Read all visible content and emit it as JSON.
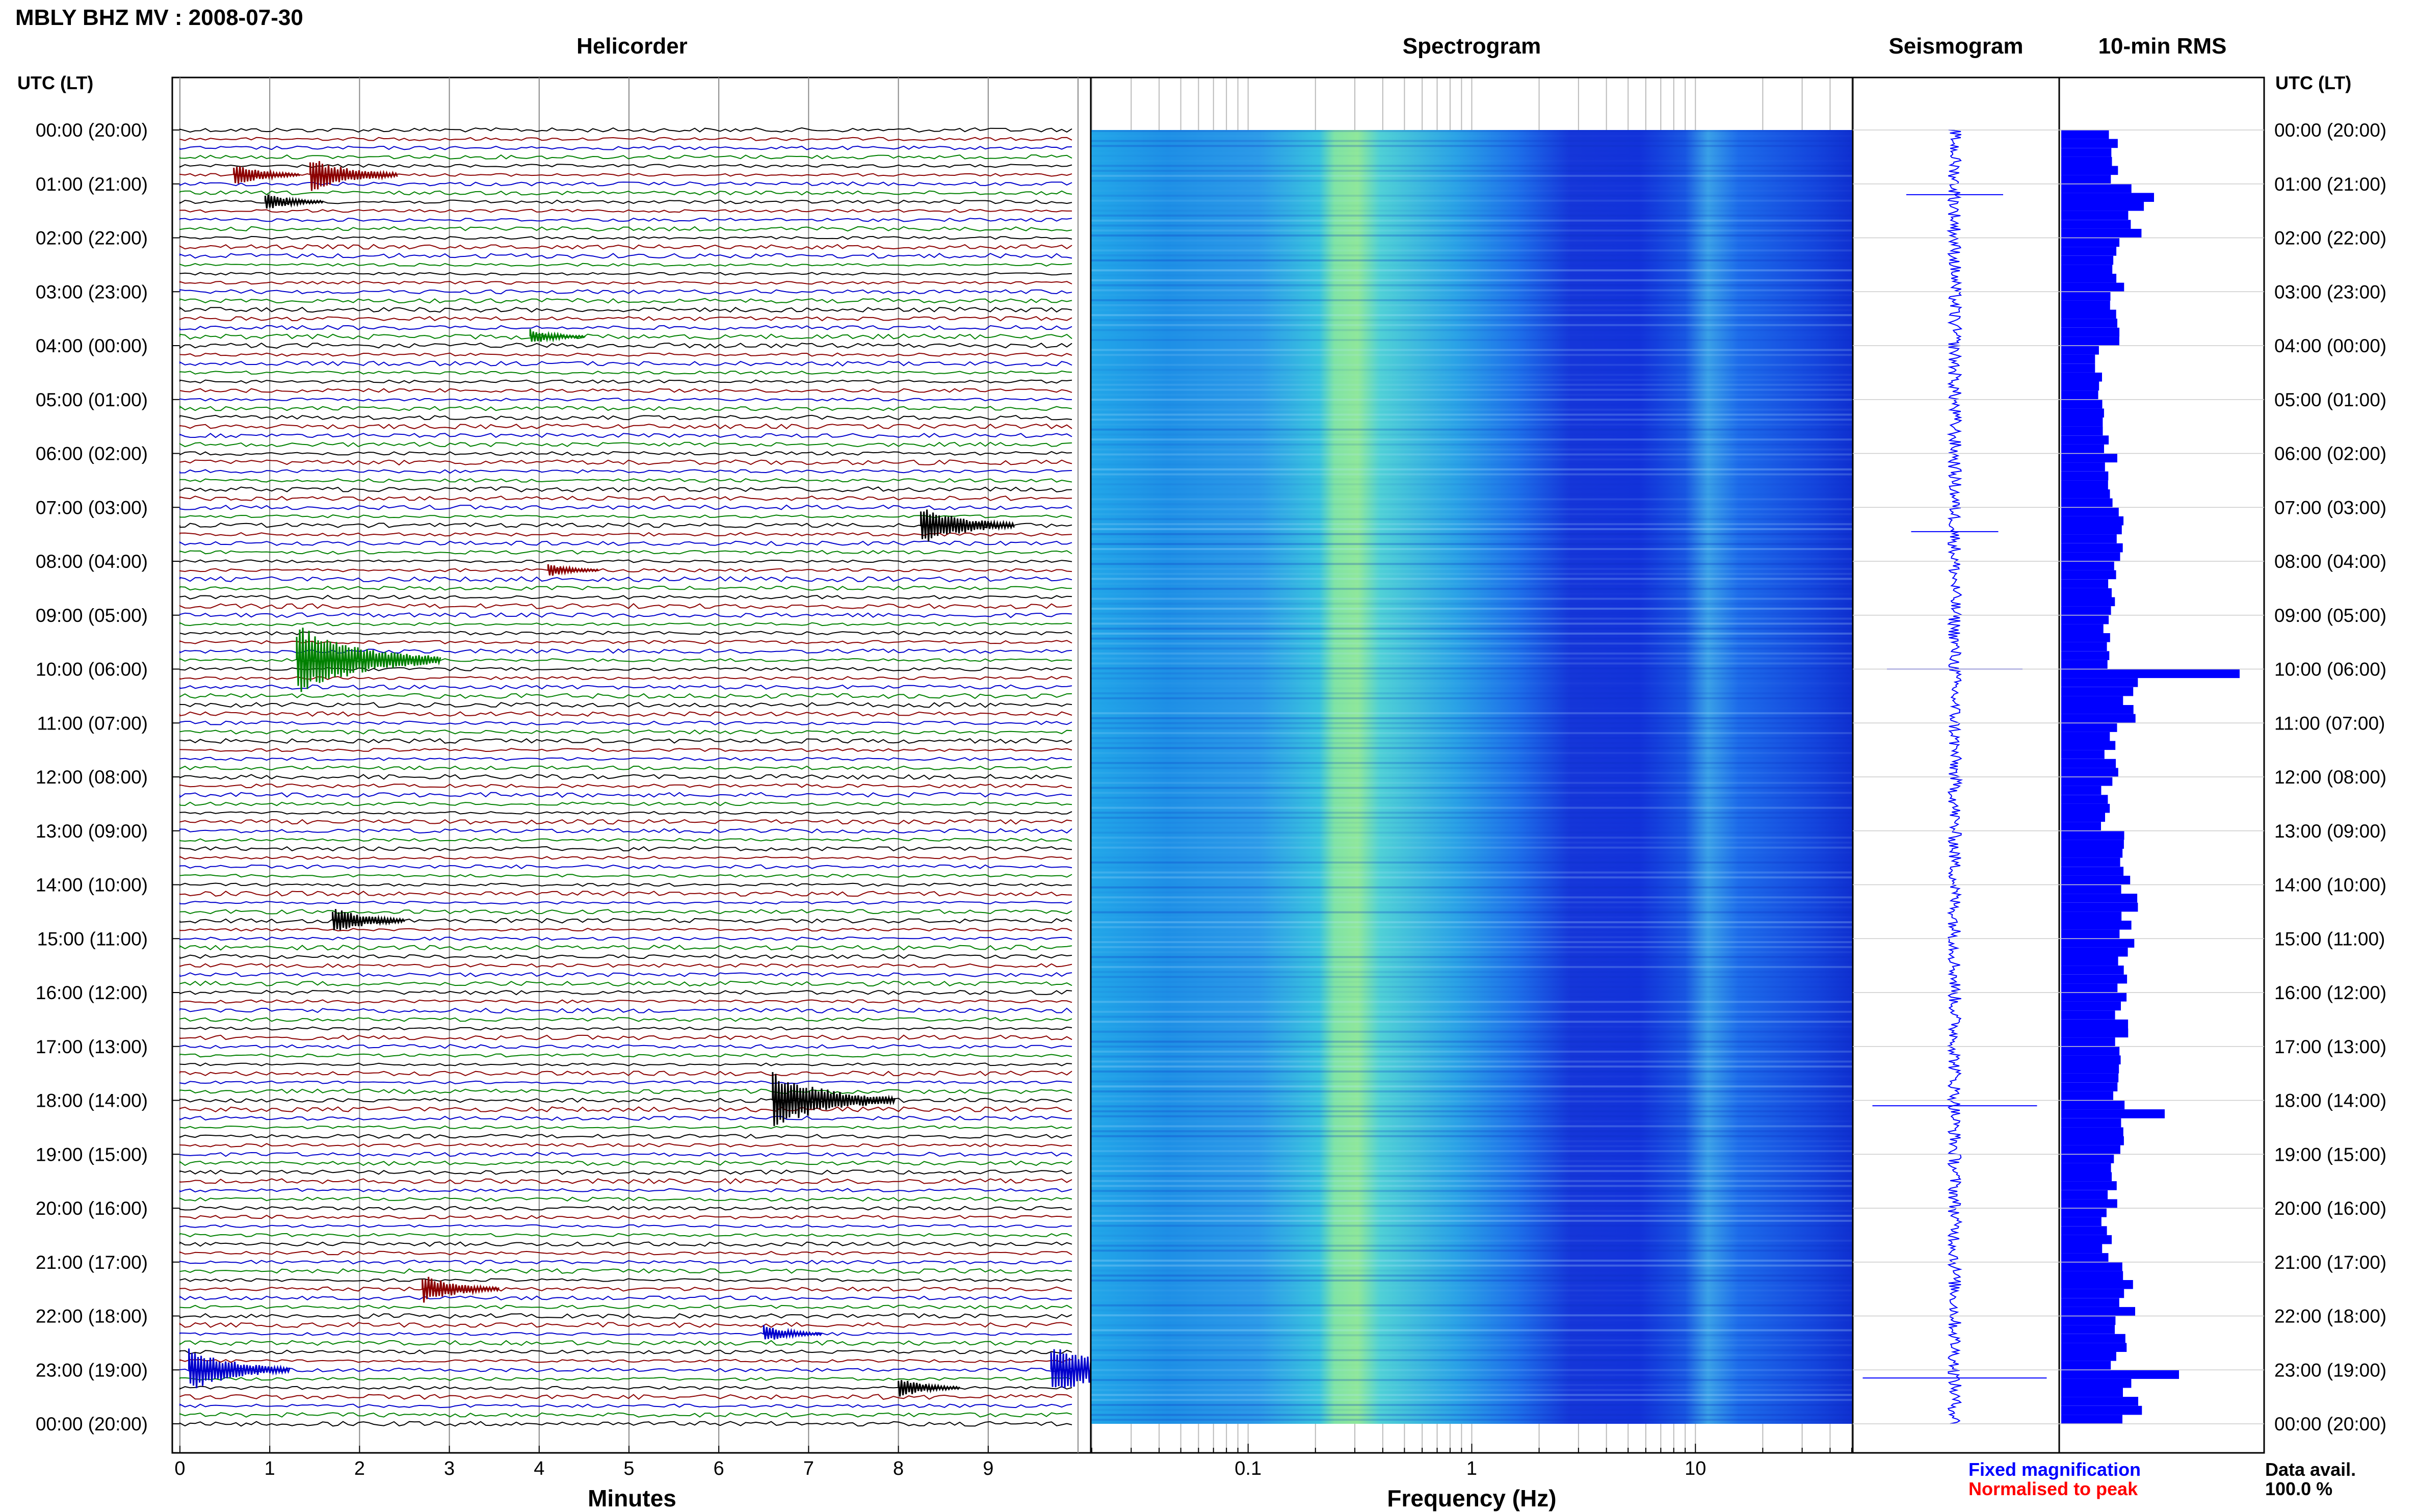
{
  "title": "MBLY BHZ MV : 2008-07-30",
  "panels": {
    "helicorder": "Helicorder",
    "spectrogram": "Spectrogram",
    "seismogram": "Seismogram",
    "rms": "10-min RMS"
  },
  "axis_head_left": "UTC (LT)",
  "axis_head_right": "UTC (LT)",
  "time_labels": [
    "00:00 (20:00)",
    "01:00 (21:00)",
    "02:00 (22:00)",
    "03:00 (23:00)",
    "04:00 (00:00)",
    "05:00 (01:00)",
    "06:00 (02:00)",
    "07:00 (03:00)",
    "08:00 (04:00)",
    "09:00 (05:00)",
    "10:00 (06:00)",
    "11:00 (07:00)",
    "12:00 (08:00)",
    "13:00 (09:00)",
    "14:00 (10:00)",
    "15:00 (11:00)",
    "16:00 (12:00)",
    "17:00 (13:00)",
    "18:00 (14:00)",
    "19:00 (15:00)",
    "20:00 (16:00)",
    "21:00 (17:00)",
    "22:00 (18:00)",
    "23:00 (19:00)",
    "00:00 (20:00)"
  ],
  "minutes_ticks": [
    "0",
    "1",
    "2",
    "3",
    "4",
    "5",
    "6",
    "7",
    "8",
    "9"
  ],
  "minutes_label": "Minutes",
  "freq_ticks": [
    "0.1",
    "1",
    "10"
  ],
  "freq_label": "Frequency (Hz)",
  "legend": {
    "fixed": "Fixed magnification",
    "fixed_color": "#0000ff",
    "normalised": "Normalised to peak",
    "normalised_color": "#ff0000"
  },
  "data_avail": {
    "label": "Data avail.",
    "value": "100.0 %"
  },
  "colors": {
    "trace_cycle": [
      "#000000",
      "#8b0000",
      "#0000cc",
      "#008000"
    ],
    "rms_bar": "#0000ff",
    "seismogram": "#0000ff"
  },
  "chart_data": [
    {
      "type": "line",
      "title": "Helicorder",
      "xlabel": "Minutes",
      "ylabel": "UTC (LT)",
      "xlim": [
        0,
        10
      ],
      "rows_per_hour": 6,
      "events": [
        {
          "hour": 0.75,
          "minute": 0.6,
          "amp": 1.0
        },
        {
          "hour": 0.85,
          "minute": 1.45,
          "amp": 1.6
        },
        {
          "hour": 1.35,
          "minute": 0.95,
          "amp": 0.8
        },
        {
          "hour": 3.75,
          "minute": 3.9,
          "amp": 0.7
        },
        {
          "hour": 7.3,
          "minute": 8.25,
          "amp": 1.8
        },
        {
          "hour": 8.15,
          "minute": 4.1,
          "amp": 0.6
        },
        {
          "hour": 9.9,
          "minute": 1.3,
          "amp": 3.2
        },
        {
          "hour": 14.6,
          "minute": 1.7,
          "amp": 1.2
        },
        {
          "hour": 17.95,
          "minute": 6.6,
          "amp": 2.6
        },
        {
          "hour": 21.45,
          "minute": 2.7,
          "amp": 1.3
        },
        {
          "hour": 22.4,
          "minute": 6.5,
          "amp": 0.8
        },
        {
          "hour": 23.0,
          "minute": 0.1,
          "amp": 2.0
        },
        {
          "hour": 22.95,
          "minute": 9.7,
          "amp": 2.4
        },
        {
          "hour": 23.25,
          "minute": 8.0,
          "amp": 0.9
        }
      ]
    },
    {
      "type": "heatmap",
      "title": "Spectrogram",
      "xlabel": "Frequency (Hz)",
      "ylabel": "UTC (LT)",
      "xscale": "log",
      "xlim": [
        0.02,
        50
      ],
      "ylim": [
        0,
        24
      ],
      "peak_band_hz": [
        0.2,
        0.35
      ]
    },
    {
      "type": "line",
      "title": "Seismogram",
      "ylim": [
        0,
        24
      ],
      "spikes": [
        {
          "hour": 1.2,
          "amp": 0.5
        },
        {
          "hour": 7.45,
          "amp": 0.45
        },
        {
          "hour": 10.0,
          "amp": 0.7
        },
        {
          "hour": 18.1,
          "amp": 0.85
        },
        {
          "hour": 23.15,
          "amp": 0.95
        }
      ]
    },
    {
      "type": "bar",
      "title": "10-min RMS",
      "ylim": [
        0,
        24
      ],
      "bins_per_hour": 6,
      "hourly_levels": [
        0.3,
        0.42,
        0.32,
        0.3,
        0.22,
        0.25,
        0.28,
        0.35,
        0.27,
        0.25,
        0.4,
        0.28,
        0.25,
        0.35,
        0.38,
        0.36,
        0.33,
        0.3,
        0.36,
        0.3,
        0.26,
        0.38,
        0.32,
        0.4
      ],
      "peaks": [
        {
          "hour": 1.2,
          "value": 0.52
        },
        {
          "hour": 10.0,
          "value": 1.0
        },
        {
          "hour": 18.1,
          "value": 0.58
        },
        {
          "hour": 23.0,
          "value": 0.66
        }
      ]
    }
  ]
}
